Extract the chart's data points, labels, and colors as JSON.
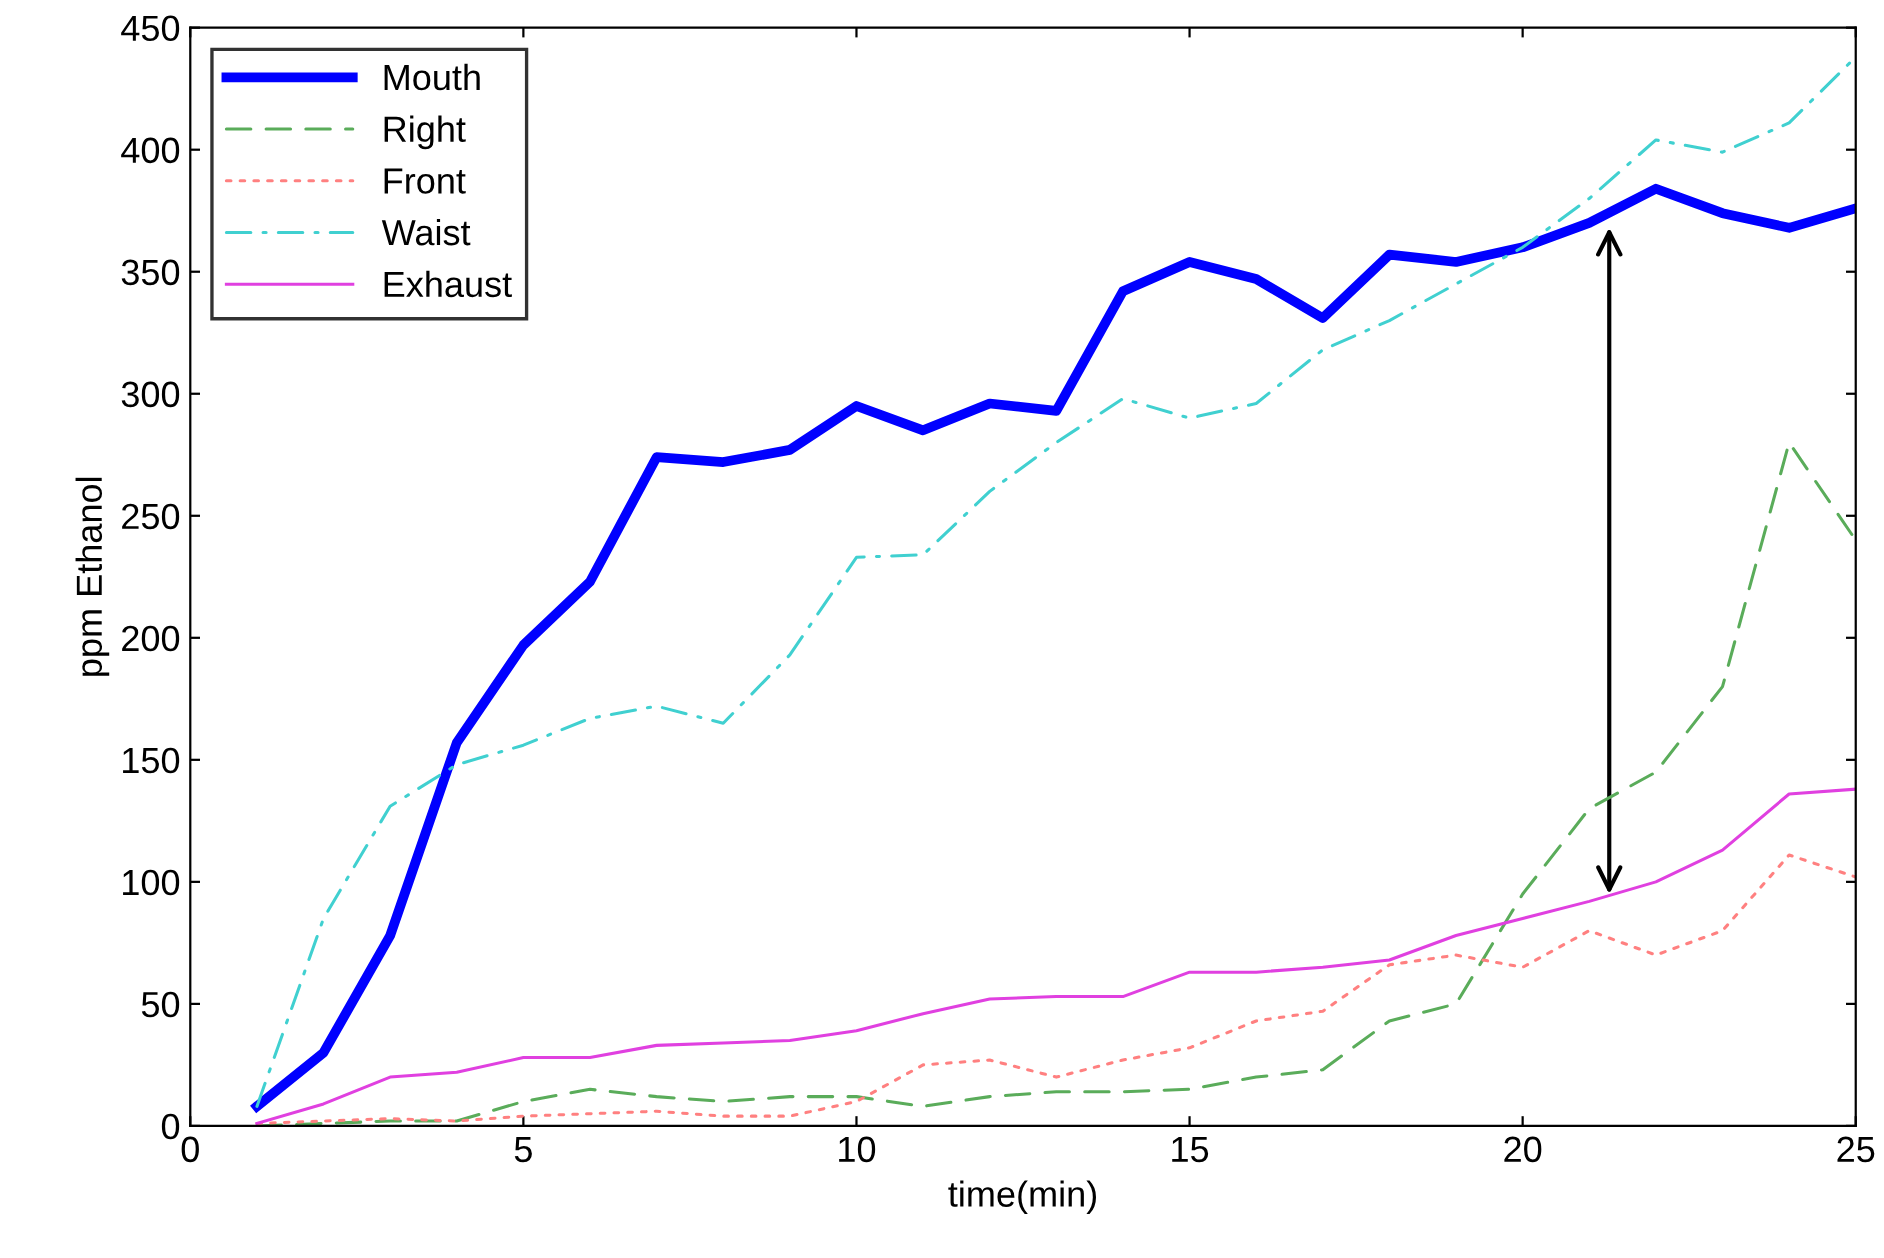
{
  "chart_data": {
    "type": "line",
    "xlabel": "time(min)",
    "ylabel": "ppm Ethanol",
    "x": [
      1,
      2,
      3,
      4,
      5,
      6,
      7,
      8,
      9,
      10,
      11,
      12,
      13,
      14,
      15,
      16,
      17,
      18,
      19,
      20,
      21,
      22,
      23,
      24,
      25
    ],
    "series": [
      {
        "name": "Mouth",
        "color": "#0000ff",
        "line_style": "solid",
        "values": [
          8,
          30,
          78,
          157,
          197,
          223,
          274,
          272,
          277,
          295,
          285,
          296,
          293,
          342,
          354,
          347,
          331,
          357,
          354,
          360,
          370,
          384,
          374,
          368,
          376
        ]
      },
      {
        "name": "Right",
        "color": "#5aac5a",
        "line_style": "dashed",
        "values": [
          0,
          1,
          2,
          2,
          10,
          15,
          12,
          10,
          12,
          12,
          8,
          12,
          14,
          14,
          15,
          20,
          23,
          43,
          50,
          95,
          130,
          145,
          180,
          280,
          240
        ]
      },
      {
        "name": "Front",
        "color": "#ff8080",
        "line_style": "dotted",
        "values": [
          1,
          2,
          3,
          2,
          4,
          5,
          6,
          4,
          4,
          10,
          25,
          27,
          20,
          27,
          32,
          43,
          47,
          66,
          70,
          65,
          80,
          70,
          80,
          111,
          102
        ]
      },
      {
        "name": "Waist",
        "color": "#40d0d0",
        "line_style": "dashdot",
        "values": [
          8,
          85,
          131,
          148,
          156,
          167,
          172,
          165,
          193,
          233,
          234,
          260,
          280,
          298,
          290,
          296,
          318,
          330,
          345,
          360,
          380,
          404,
          399,
          411,
          438
        ]
      },
      {
        "name": "Exhaust",
        "color": "#e040e0",
        "line_style": "solid",
        "values": [
          1,
          9,
          20,
          22,
          28,
          28,
          33,
          34,
          35,
          39,
          46,
          52,
          53,
          53,
          63,
          63,
          65,
          68,
          78,
          85,
          92,
          100,
          113,
          136,
          138
        ]
      }
    ],
    "xlim": [
      0,
      25
    ],
    "xticks": [
      0,
      5,
      10,
      15,
      20,
      25
    ],
    "ylim": [
      0,
      450
    ],
    "yticks": [
      0,
      50,
      100,
      150,
      200,
      250,
      300,
      350,
      400,
      450
    ],
    "grid": false,
    "legend": "top left",
    "marker": "none"
  }
}
